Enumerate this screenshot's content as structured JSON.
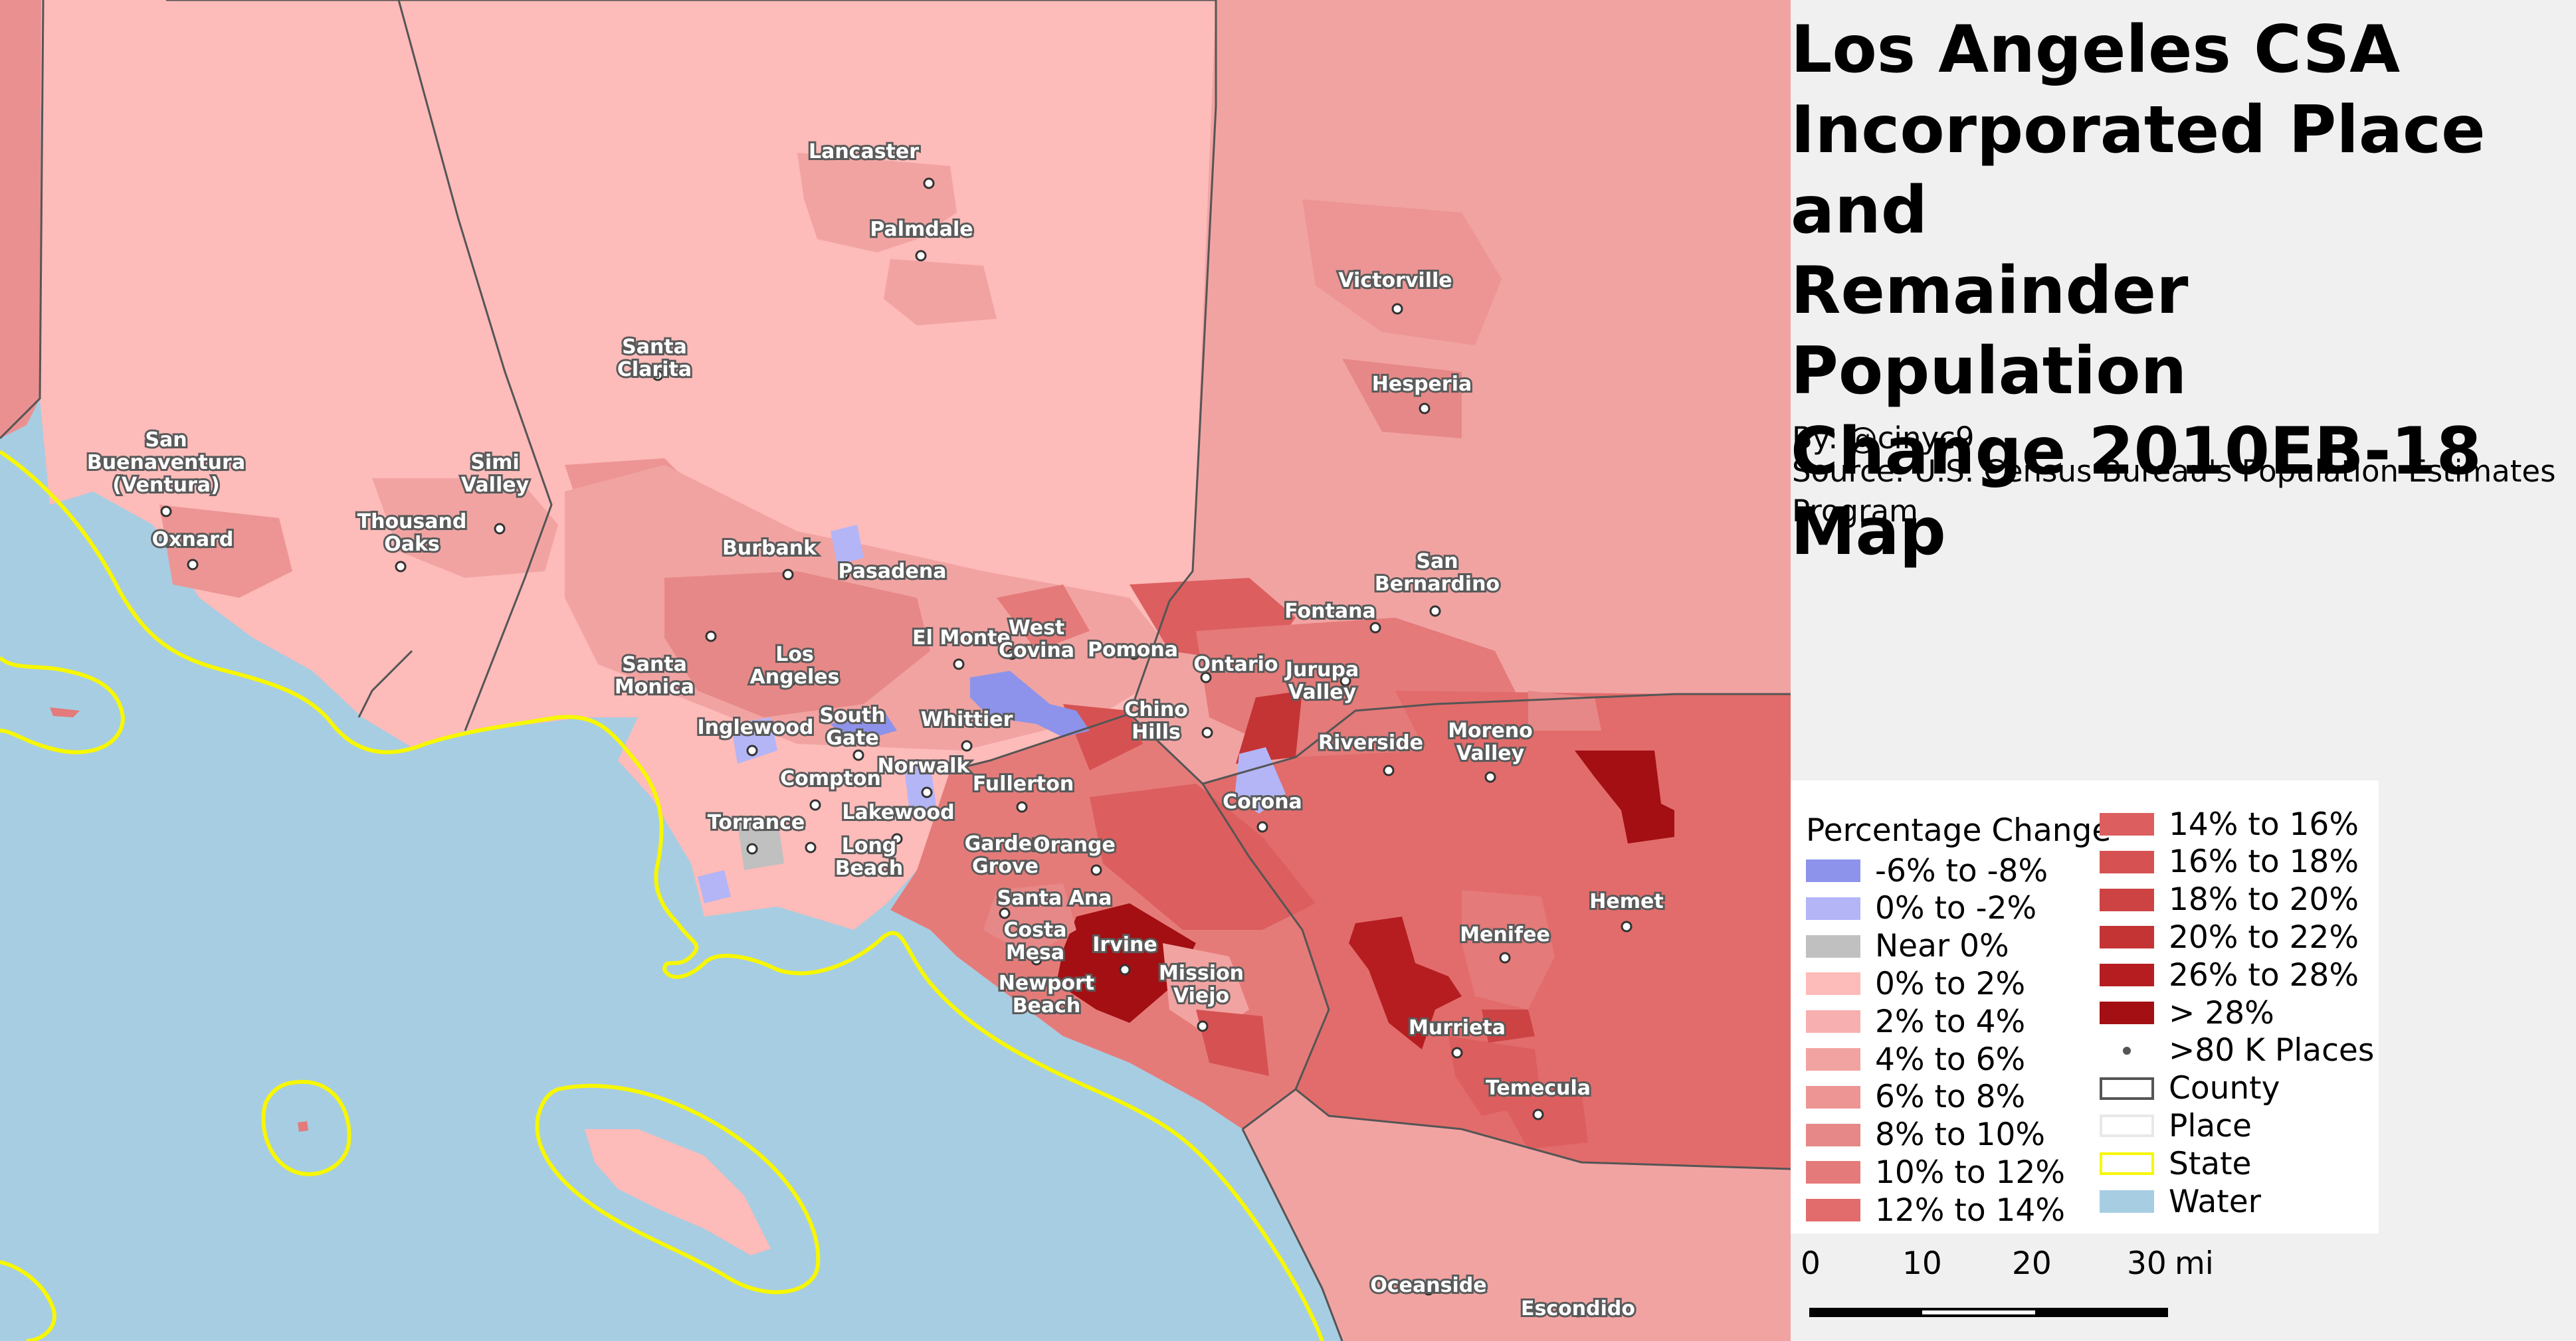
{
  "title_lines": [
    "Los Angeles CSA",
    "Incorporated Place and",
    "Remainder Population",
    "Change 2010EB-18",
    "Map"
  ],
  "byline": "By: @cinyc9",
  "source_lines": [
    "Source: U.S. Census Bureau's Population Estimates",
    "Program"
  ],
  "colors": {
    "water": "#a7cde2",
    "ventura": "#fdbbb9",
    "la": "#fdbbb9",
    "san_bernardino": "#f1a3a2",
    "orange": "#e57b79",
    "riverside": "#e26c6b",
    "san_diego": "#f1a3a2",
    "state_line": "#f7f700",
    "county_line": "#555555"
  },
  "legend": {
    "title": "Percentage Change",
    "left_items": [
      {
        "label": "-6% to -8%",
        "color": "#8d93ea",
        "icon": "swatch"
      },
      {
        "label": "0% to -2%",
        "color": "#b3b5f7",
        "icon": "swatch"
      },
      {
        "label": "Near 0%",
        "color": "#c0c0c0",
        "icon": "swatch"
      },
      {
        "label": "0% to 2%",
        "color": "#fdbbb9",
        "icon": "swatch"
      },
      {
        "label": "2% to 4%",
        "color": "#f8afaf",
        "icon": "swatch"
      },
      {
        "label": "4% to 6%",
        "color": "#f1a3a2",
        "icon": "swatch"
      },
      {
        "label": "6% to 8%",
        "color": "#ec9594",
        "icon": "swatch"
      },
      {
        "label": "8% to 10%",
        "color": "#e68887",
        "icon": "swatch"
      },
      {
        "label": "10% to 12%",
        "color": "#e47a79",
        "icon": "swatch"
      },
      {
        "label": "12% to 14%",
        "color": "#e16c6b",
        "icon": "swatch"
      }
    ],
    "right_items": [
      {
        "label": "14% to 16%",
        "color": "#dc5e5e",
        "icon": "swatch"
      },
      {
        "label": "16% to 18%",
        "color": "#d65252",
        "icon": "swatch"
      },
      {
        "label": "18% to 20%",
        "color": "#cd4344",
        "icon": "swatch"
      },
      {
        "label": "20% to 22%",
        "color": "#c43435",
        "icon": "swatch"
      },
      {
        "label": "26% to 28%",
        "color": "#b51d21",
        "icon": "swatch"
      },
      {
        "label": "> 28%",
        "color": "#a30f12",
        "icon": "swatch"
      },
      {
        "label": ">80 K Places",
        "color": "#555555",
        "icon": "dot"
      },
      {
        "label": "County",
        "color": "#555555",
        "icon": "outline"
      },
      {
        "label": "Place",
        "color": "#e8e8e8",
        "icon": "outline"
      },
      {
        "label": "State",
        "color": "#f7f700",
        "icon": "outline"
      },
      {
        "label": "Water",
        "color": "#a7cde2",
        "icon": "swatch"
      }
    ]
  },
  "scale_bar": {
    "ticks": [
      "0",
      "10",
      "20",
      "30"
    ],
    "unit": "mi"
  },
  "cities": [
    {
      "name": [
        "Lancaster"
      ]
    },
    {
      "name": [
        "Palmdale"
      ]
    },
    {
      "name": [
        "Victorville"
      ]
    },
    {
      "name": [
        "Hesperia"
      ]
    },
    {
      "name": [
        "Santa",
        "Clarita"
      ]
    },
    {
      "name": [
        "San",
        "Buenaventura",
        "(Ventura)"
      ]
    },
    {
      "name": [
        "Simi",
        "Valley"
      ]
    },
    {
      "name": [
        "Thousand",
        "Oaks"
      ]
    },
    {
      "name": [
        "Oxnard"
      ]
    },
    {
      "name": [
        "Burbank"
      ]
    },
    {
      "name": [
        "Pasadena"
      ]
    },
    {
      "name": [
        "San",
        "Bernardino"
      ]
    },
    {
      "name": [
        "Fontana"
      ]
    },
    {
      "name": [
        "El Monte"
      ]
    },
    {
      "name": [
        "West",
        "Covina"
      ]
    },
    {
      "name": [
        "Pomona"
      ]
    },
    {
      "name": [
        "Ontario"
      ]
    },
    {
      "name": [
        "Los",
        "Angeles"
      ]
    },
    {
      "name": [
        "Santa",
        "Monica"
      ]
    },
    {
      "name": [
        "Jurupa",
        "Valley"
      ]
    },
    {
      "name": [
        "Chino",
        "Hills"
      ]
    },
    {
      "name": [
        "Whittier"
      ]
    },
    {
      "name": [
        "South",
        "Gate"
      ]
    },
    {
      "name": [
        "Inglewood"
      ]
    },
    {
      "name": [
        "Riverside"
      ]
    },
    {
      "name": [
        "Moreno",
        "Valley"
      ]
    },
    {
      "name": [
        "Norwalk"
      ]
    },
    {
      "name": [
        "Compton"
      ]
    },
    {
      "name": [
        "Fullerton"
      ]
    },
    {
      "name": [
        "Corona"
      ]
    },
    {
      "name": [
        "Lakewood"
      ]
    },
    {
      "name": [
        "Torrance"
      ]
    },
    {
      "name": [
        "Long",
        "Beach"
      ]
    },
    {
      "name": [
        "Garden",
        "Grove"
      ]
    },
    {
      "name": [
        "Orange"
      ]
    },
    {
      "name": [
        "Santa Ana"
      ]
    },
    {
      "name": [
        "Hemet"
      ]
    },
    {
      "name": [
        "Costa",
        "Mesa"
      ]
    },
    {
      "name": [
        "Irvine"
      ]
    },
    {
      "name": [
        "Menifee"
      ]
    },
    {
      "name": [
        "Mission",
        "Viejo"
      ]
    },
    {
      "name": [
        "Newport",
        "Beach"
      ]
    },
    {
      "name": [
        "Murrieta"
      ]
    },
    {
      "name": [
        "Temecula"
      ]
    },
    {
      "name": [
        "Oceanside"
      ]
    },
    {
      "name": [
        "Escondido"
      ]
    }
  ]
}
